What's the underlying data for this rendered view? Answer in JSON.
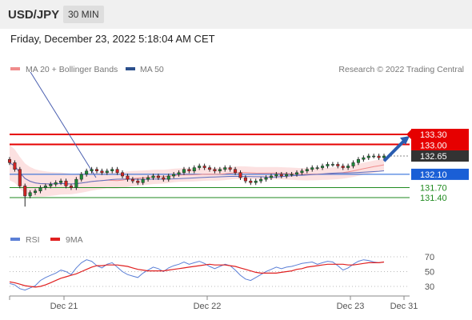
{
  "header": {
    "pair": "USD/JPY",
    "timeframe": "30 MIN"
  },
  "datetime": "Friday, December 23, 2022 5:18:04 AM CET",
  "price_legend": [
    {
      "label": "MA 20 + Bollinger Bands",
      "color": "#f08c8c"
    },
    {
      "label": "MA 50",
      "color": "#2b4f8c"
    }
  ],
  "copyright": "Research © 2022 Trading Central",
  "rsi_legend": [
    {
      "label": "RSI",
      "color": "#5b7fd6"
    },
    {
      "label": "9MA",
      "color": "#e02020"
    }
  ],
  "chart_data": [
    {
      "type": "candlestick",
      "x_ticks": [
        "Dec 21",
        "Dec 22",
        "Dec 23",
        "Dec 31"
      ],
      "levels": [
        {
          "value": 133.3,
          "label": "133.30",
          "kind": "resistance",
          "color": "#e60000"
        },
        {
          "value": 133.0,
          "label": "133.00",
          "kind": "resistance",
          "color": "#e60000"
        },
        {
          "value": 132.65,
          "label": "132.65",
          "kind": "last",
          "color": "#333333"
        },
        {
          "value": 132.1,
          "label": "132.10",
          "kind": "pivot",
          "color": "#1a5fd6"
        },
        {
          "value": 131.7,
          "label": "131.70",
          "kind": "support",
          "color": "#1f8a1f"
        },
        {
          "value": 131.4,
          "label": "131.40",
          "kind": "support",
          "color": "#1f8a1f"
        }
      ],
      "ylim": [
        130.5,
        133.6
      ],
      "closes_approx": [
        132.45,
        132.25,
        131.75,
        131.45,
        131.55,
        131.6,
        131.7,
        131.75,
        131.8,
        131.85,
        131.9,
        131.75,
        131.7,
        131.95,
        132.1,
        132.2,
        132.25,
        132.2,
        132.15,
        132.2,
        132.25,
        132.15,
        132.05,
        131.95,
        131.9,
        131.85,
        131.95,
        132.0,
        132.05,
        132.0,
        131.95,
        132.05,
        132.1,
        132.15,
        132.25,
        132.2,
        132.3,
        132.35,
        132.3,
        132.25,
        132.2,
        132.25,
        132.3,
        132.25,
        132.15,
        132.0,
        131.9,
        131.85,
        131.9,
        131.95,
        132.0,
        132.05,
        132.1,
        132.05,
        132.1,
        132.1,
        132.15,
        132.2,
        132.25,
        132.3,
        132.3,
        132.35,
        132.4,
        132.4,
        132.35,
        132.3,
        132.35,
        132.45,
        132.55,
        132.6,
        132.65,
        132.65,
        132.6,
        132.65
      ],
      "arrow": {
        "from": 132.5,
        "to": 133.25,
        "direction": "up"
      }
    },
    {
      "type": "line",
      "title": "RSI",
      "series": [
        {
          "name": "RSI",
          "values": [
            34,
            32,
            27,
            25,
            28,
            31,
            38,
            42,
            45,
            48,
            52,
            50,
            46,
            55,
            62,
            66,
            64,
            58,
            55,
            60,
            62,
            56,
            50,
            46,
            44,
            42,
            48,
            52,
            56,
            54,
            50,
            55,
            58,
            60,
            63,
            60,
            62,
            64,
            61,
            57,
            54,
            57,
            60,
            58,
            52,
            45,
            40,
            38,
            42,
            46,
            50,
            53,
            56,
            54,
            56,
            57,
            59,
            61,
            62,
            63,
            60,
            62,
            64,
            63,
            58,
            52,
            55,
            60,
            64,
            66,
            65,
            63,
            62,
            63
          ]
        },
        {
          "name": "9MA",
          "values": [
            36,
            35,
            33,
            31,
            30,
            29,
            30,
            32,
            35,
            38,
            41,
            43,
            45,
            47,
            50,
            53,
            56,
            58,
            58,
            59,
            59,
            59,
            58,
            57,
            55,
            53,
            52,
            51,
            51,
            51,
            51,
            52,
            53,
            54,
            55,
            56,
            57,
            58,
            59,
            60,
            59,
            59,
            59,
            58,
            57,
            55,
            53,
            51,
            49,
            48,
            48,
            48,
            48,
            49,
            50,
            51,
            53,
            54,
            56,
            57,
            58,
            59,
            60,
            60,
            60,
            60,
            59,
            59,
            60,
            61,
            62,
            62,
            62,
            63
          ]
        }
      ],
      "y_ticks": [
        70,
        50,
        30
      ],
      "ylim": [
        20,
        80
      ]
    }
  ]
}
